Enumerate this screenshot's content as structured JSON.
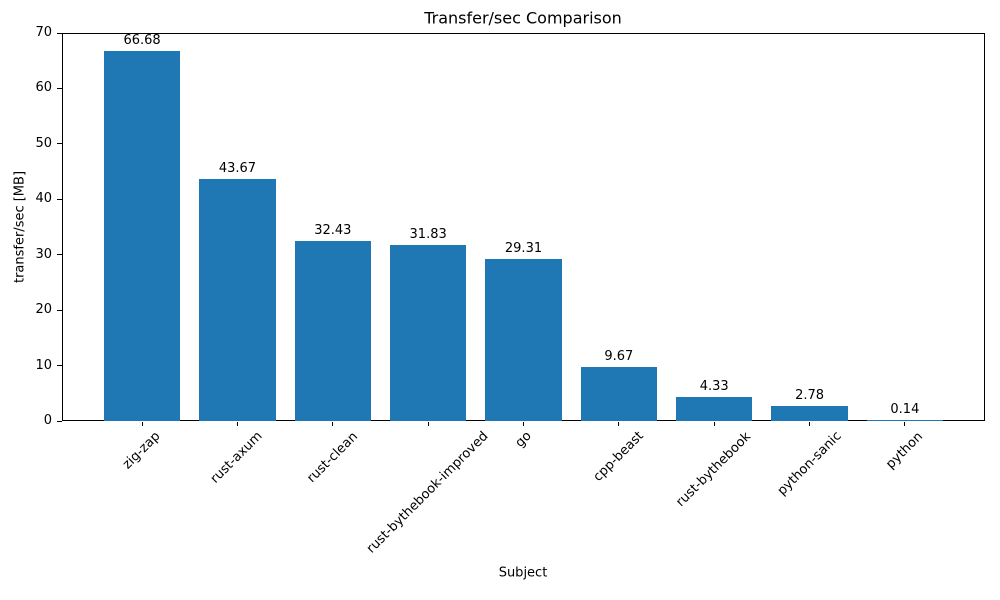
{
  "chart_data": {
    "type": "bar",
    "title": "Transfer/sec Comparison",
    "xlabel": "Subject",
    "ylabel": "transfer/sec [MB]",
    "categories": [
      "zig-zap",
      "rust-axum",
      "rust-clean",
      "rust-bythebook-improved",
      "go",
      "cpp-beast",
      "rust-bythebook",
      "python-sanic",
      "python"
    ],
    "values": [
      66.68,
      43.67,
      32.43,
      31.83,
      29.31,
      9.67,
      4.33,
      2.78,
      0.14
    ],
    "bar_labels": [
      "66.68",
      "43.67",
      "32.43",
      "31.83",
      "29.31",
      "9.67",
      "4.33",
      "2.78",
      "0.14"
    ],
    "ylim": [
      0,
      70
    ],
    "yticks": [
      0,
      10,
      20,
      30,
      40,
      50,
      60,
      70
    ],
    "bar_color": "#1f77b4",
    "axis_color": "#000000",
    "text_color": "#000000",
    "grid": false,
    "legend": null
  }
}
